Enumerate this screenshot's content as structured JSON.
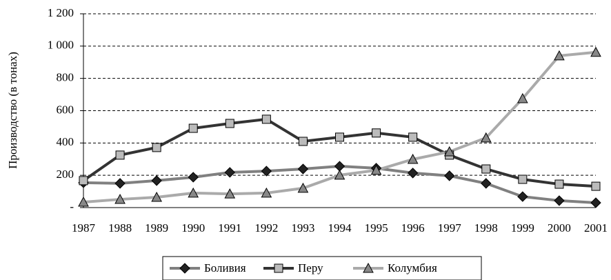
{
  "chart_data": {
    "type": "line",
    "y_label": "Производство (в тонах)",
    "categories": [
      "1987",
      "1988",
      "1989",
      "1990",
      "1991",
      "1992",
      "1993",
      "1994",
      "1995",
      "1996",
      "1997",
      "1998",
      "1999",
      "2000",
      "2001"
    ],
    "series": [
      {
        "name": "Боливия",
        "color": "#808080",
        "marker": "diamond",
        "marker_color": "#222222",
        "values": [
          154,
          150,
          167,
          188,
          218,
          226,
          239,
          256,
          244,
          214,
          197,
          150,
          68,
          43,
          30
        ]
      },
      {
        "name": "Перу",
        "color": "#333333",
        "marker": "square",
        "marker_color": "#bbbbbb",
        "values": [
          167,
          325,
          372,
          491,
          521,
          547,
          410,
          436,
          462,
          436,
          325,
          239,
          175,
          145,
          132
        ]
      },
      {
        "name": "Колумбия",
        "color": "#aaaaaa",
        "marker": "triangle",
        "marker_color": "#888888",
        "values": [
          34,
          51,
          64,
          90,
          85,
          90,
          120,
          201,
          231,
          299,
          346,
          432,
          675,
          940,
          962
        ]
      }
    ],
    "ylim": [
      0,
      1200
    ],
    "yticks": [
      {
        "value": 0,
        "label": "-"
      },
      200,
      400,
      600,
      800,
      {
        "value": 1000,
        "label": "1 000"
      },
      {
        "value": 1200,
        "label": "1 200"
      }
    ],
    "grid": true,
    "legend": "bottom"
  }
}
